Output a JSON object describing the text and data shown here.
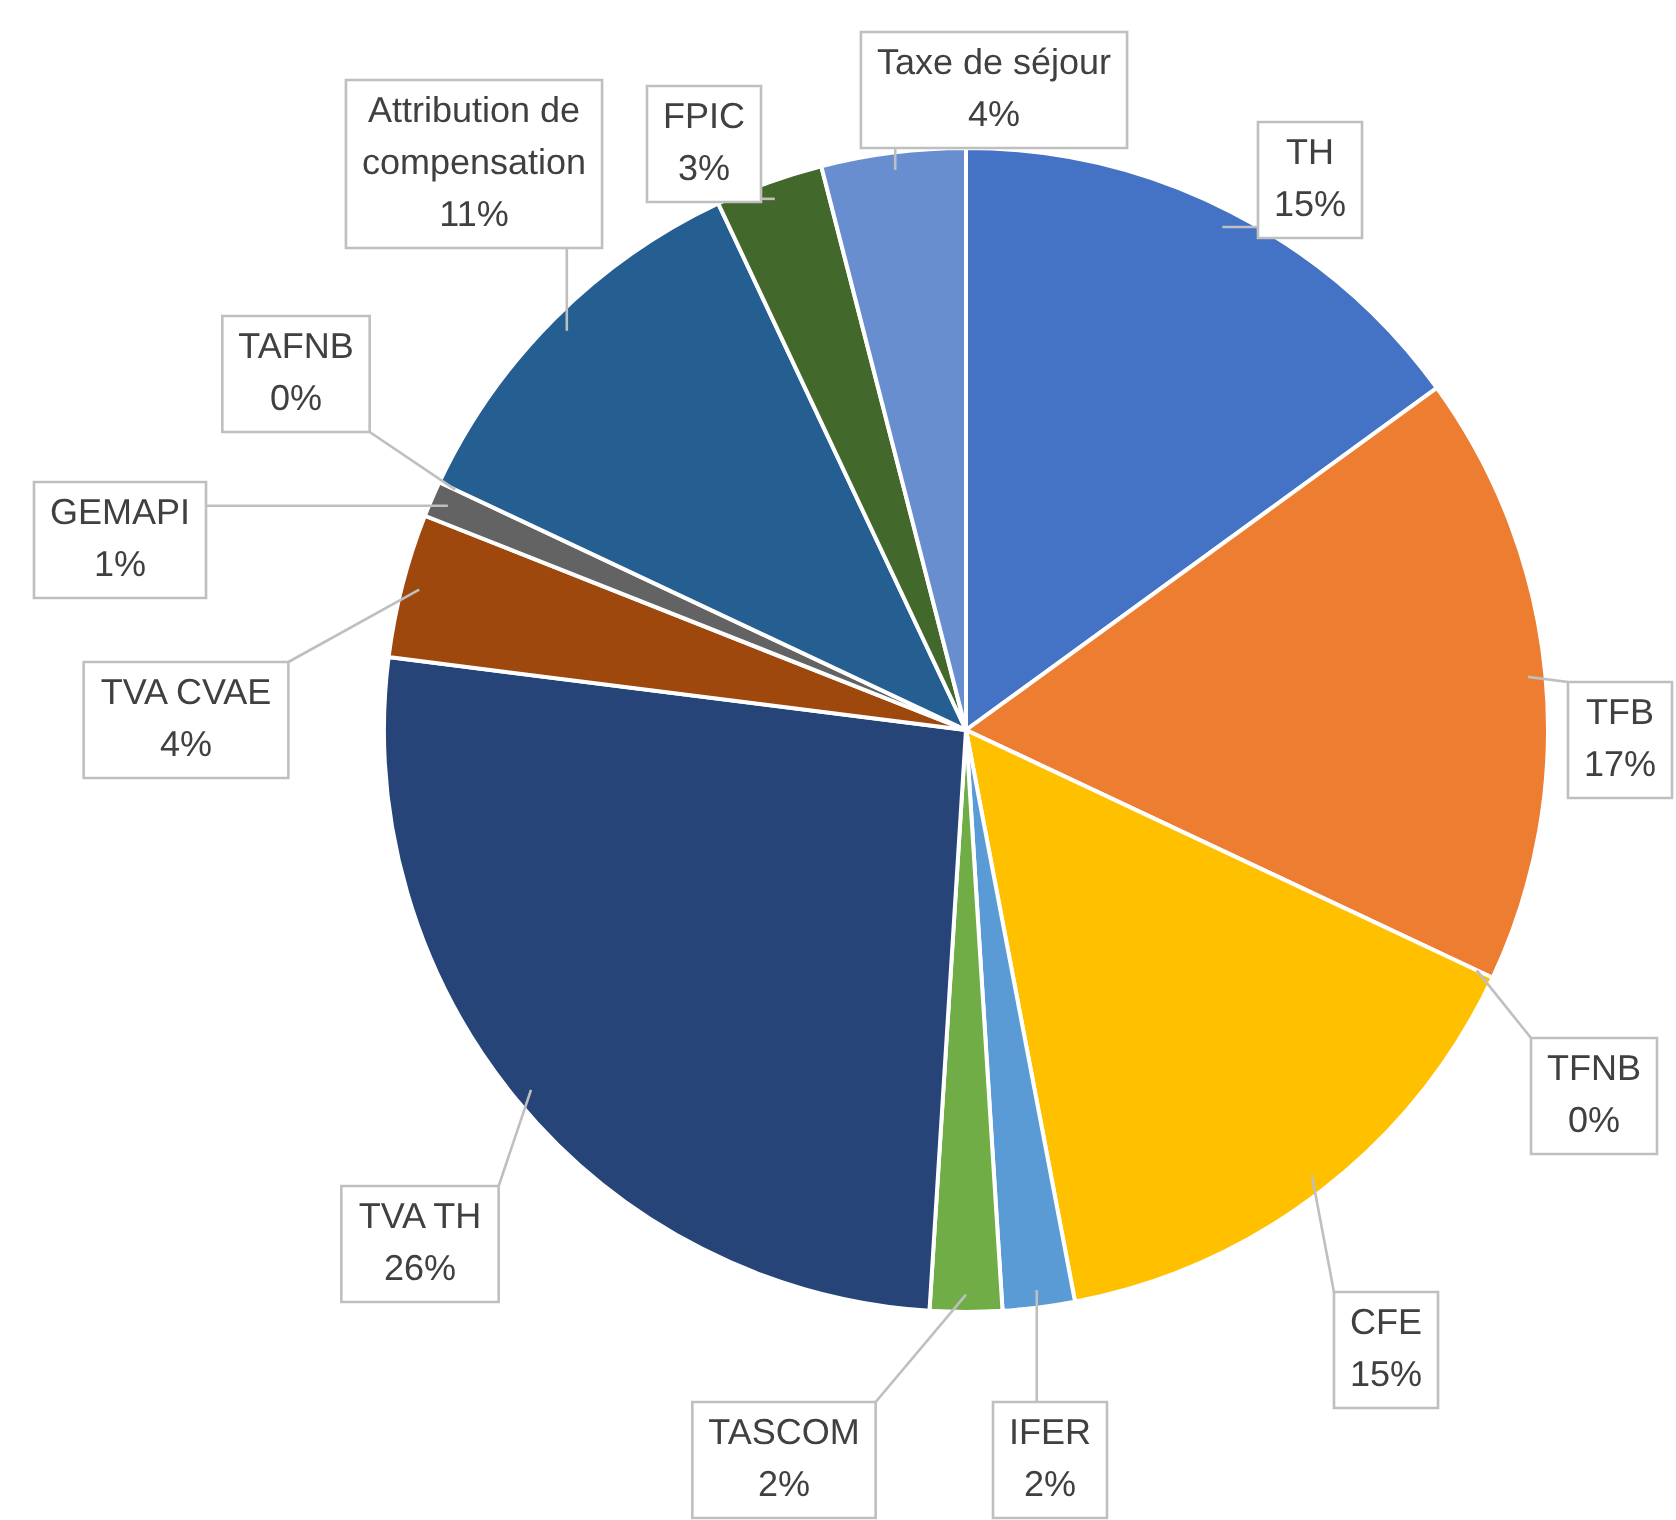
{
  "chart_data": {
    "type": "pie",
    "categories": [
      "TH",
      "TFB",
      "TFNB",
      "CFE",
      "IFER",
      "TASCOM",
      "TVA TH",
      "TVA CVAE",
      "GEMAPI",
      "TAFNB",
      "Attribution de compensation",
      "FPIC",
      "Taxe de séjour"
    ],
    "values": [
      15,
      17,
      0,
      15,
      2,
      2,
      26,
      4,
      1,
      0,
      11,
      3,
      4
    ],
    "colors": [
      "#4472c4",
      "#ed7d31",
      "#a5a5a5",
      "#ffc000",
      "#5b9bd5",
      "#70ad47",
      "#264478",
      "#9e480e",
      "#636363",
      "#997300",
      "#255e91",
      "#43682b",
      "#698ed0"
    ],
    "value_labels": [
      "15%",
      "17%",
      "0%",
      "15%",
      "2%",
      "2%",
      "26%",
      "4%",
      "1%",
      "0%",
      "11%",
      "3%",
      "4%"
    ],
    "legend": false
  }
}
